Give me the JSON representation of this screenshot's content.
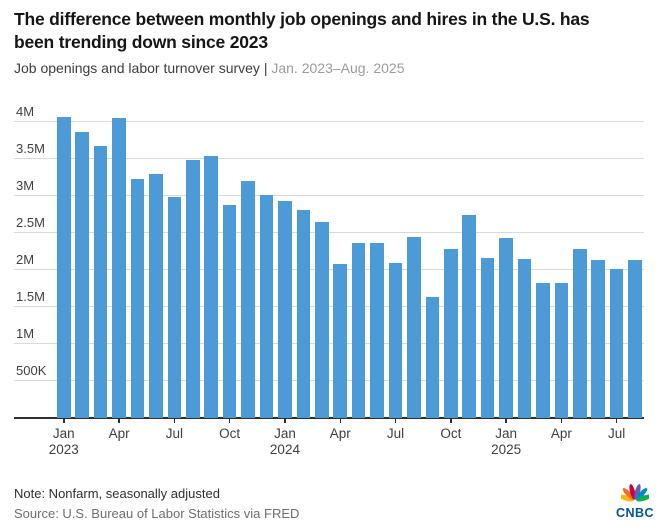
{
  "header": {
    "title": "The difference between monthly job openings and hires in the U.S. has been trending down since 2023",
    "subtitle_main": "Job openings and labor turnover survey | ",
    "subtitle_range": "Jan. 2023–Aug. 2025"
  },
  "chart_data": {
    "type": "bar",
    "title": "The difference between monthly job openings and hires in the U.S. has been trending down since 2023",
    "subtitle": "Job openings and labor turnover survey | Jan. 2023–Aug. 2025",
    "unit": "millions",
    "categories": [
      "Jan 2023",
      "Feb 2023",
      "Mar 2023",
      "Apr 2023",
      "May 2023",
      "Jun 2023",
      "Jul 2023",
      "Aug 2023",
      "Sep 2023",
      "Oct 2023",
      "Nov 2023",
      "Dec 2023",
      "Jan 2024",
      "Feb 2024",
      "Mar 2024",
      "Apr 2024",
      "May 2024",
      "Jun 2024",
      "Jul 2024",
      "Aug 2024",
      "Sep 2024",
      "Oct 2024",
      "Nov 2024",
      "Dec 2024",
      "Jan 2025",
      "Feb 2025",
      "Mar 2025",
      "Apr 2025",
      "May 2025",
      "Jun 2025",
      "Jul 2025",
      "Aug 2025"
    ],
    "values": [
      4.07,
      3.87,
      3.67,
      4.06,
      3.23,
      3.3,
      2.99,
      3.49,
      3.54,
      2.88,
      3.2,
      3.01,
      2.93,
      2.81,
      2.65,
      2.08,
      2.37,
      2.36,
      2.1,
      2.45,
      1.64,
      2.29,
      2.75,
      2.16,
      2.43,
      2.15,
      1.83,
      1.82,
      2.28,
      2.13,
      2.01,
      2.14
    ],
    "ylim": [
      0,
      4.2
    ],
    "grid": true,
    "legend_position": "none",
    "y_ticks": [
      {
        "value": 4.0,
        "label": "4M"
      },
      {
        "value": 3.5,
        "label": "3.5M"
      },
      {
        "value": 3.0,
        "label": "3M"
      },
      {
        "value": 2.5,
        "label": "2.5M"
      },
      {
        "value": 2.0,
        "label": "2M"
      },
      {
        "value": 1.5,
        "label": "1.5M"
      },
      {
        "value": 1.0,
        "label": "1M"
      },
      {
        "value": 0.5,
        "label": "500K"
      }
    ],
    "x_ticks": [
      {
        "index": 0,
        "label": "Jan",
        "sublabel": "2023"
      },
      {
        "index": 3,
        "label": "Apr",
        "sublabel": ""
      },
      {
        "index": 6,
        "label": "Jul",
        "sublabel": ""
      },
      {
        "index": 9,
        "label": "Oct",
        "sublabel": ""
      },
      {
        "index": 12,
        "label": "Jan",
        "sublabel": "2024"
      },
      {
        "index": 15,
        "label": "Apr",
        "sublabel": ""
      },
      {
        "index": 18,
        "label": "Jul",
        "sublabel": ""
      },
      {
        "index": 21,
        "label": "Oct",
        "sublabel": ""
      },
      {
        "index": 24,
        "label": "Jan",
        "sublabel": "2025"
      },
      {
        "index": 27,
        "label": "Apr",
        "sublabel": ""
      },
      {
        "index": 30,
        "label": "Jul",
        "sublabel": ""
      }
    ],
    "bar_color": "#4c9bd6",
    "grid_color": "#d9d9d9",
    "axis_color": "#2e2e2e"
  },
  "footer": {
    "note": "Note: Nonfarm, seasonally adjusted",
    "source": "Source: U.S. Bureau of Labor Statistics via FRED",
    "logo_text": "CNBC"
  },
  "logo_colors": [
    "#FCB711",
    "#F37021",
    "#CC004C",
    "#6460AA",
    "#0089D0",
    "#0DB14B"
  ]
}
